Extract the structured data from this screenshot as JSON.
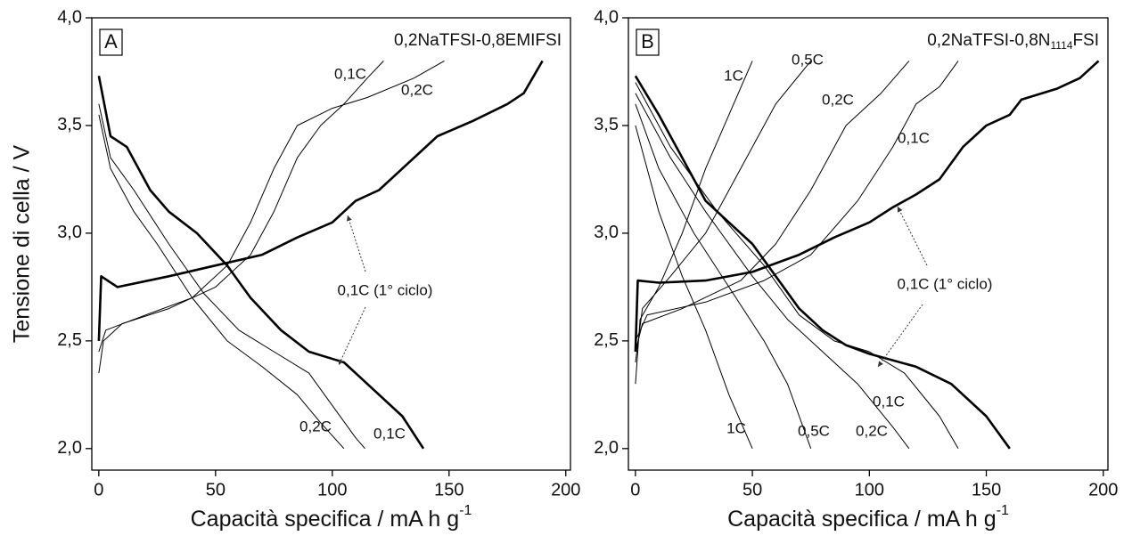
{
  "chart_data": [
    {
      "type": "line",
      "panel": "A",
      "title": "0,2NaTFSI-0,8EMIFSI",
      "x_label": "Capacità specifica / mA h g",
      "x_label_sup": "-1",
      "y_label": "Tensione di cella / V",
      "xlim": [
        -3,
        202
      ],
      "ylim": [
        1.9,
        4.0
      ],
      "xticks": [
        0,
        50,
        100,
        150,
        200
      ],
      "yticks": [
        {
          "value": 2,
          "label": "2,0"
        },
        {
          "value": 2.5,
          "label": "2,5"
        },
        {
          "value": 3,
          "label": "3,0"
        },
        {
          "value": 3.5,
          "label": "3,5"
        },
        {
          "value": 4,
          "label": "4,0"
        }
      ],
      "series": [
        {
          "color": "#000000",
          "linewidth": 2.6,
          "x": [
            0,
            1,
            8,
            30,
            50,
            70,
            85,
            100,
            110,
            120,
            130,
            145,
            160,
            175,
            182,
            190
          ],
          "values": [
            2.5,
            2.8,
            2.75,
            2.8,
            2.85,
            2.9,
            2.98,
            3.05,
            3.15,
            3.2,
            3.3,
            3.45,
            3.52,
            3.6,
            3.65,
            3.8
          ]
        },
        {
          "color": "#000000",
          "linewidth": 2.6,
          "x": [
            0,
            5,
            12,
            22,
            30,
            42,
            55,
            65,
            78,
            90,
            105,
            115,
            130,
            139
          ],
          "values": [
            3.73,
            3.45,
            3.4,
            3.2,
            3.1,
            3.0,
            2.85,
            2.7,
            2.55,
            2.45,
            2.4,
            2.3,
            2.15,
            2.0
          ]
        },
        {
          "color": "#000000",
          "linewidth": 1,
          "x": [
            0,
            2,
            10,
            30,
            50,
            65,
            75,
            85,
            95,
            105,
            115,
            122
          ],
          "values": [
            2.35,
            2.5,
            2.58,
            2.65,
            2.75,
            2.9,
            3.1,
            3.35,
            3.5,
            3.6,
            3.72,
            3.8
          ]
        },
        {
          "color": "#000000",
          "linewidth": 1,
          "x": [
            0,
            3,
            20,
            40,
            55,
            65,
            75,
            85,
            100,
            115,
            135,
            148
          ],
          "values": [
            2.45,
            2.55,
            2.62,
            2.7,
            2.85,
            3.05,
            3.3,
            3.5,
            3.58,
            3.63,
            3.72,
            3.8
          ]
        },
        {
          "color": "#000000",
          "linewidth": 1,
          "x": [
            0,
            5,
            15,
            30,
            45,
            60,
            75,
            90,
            100,
            110,
            114
          ],
          "values": [
            3.6,
            3.35,
            3.2,
            2.95,
            2.72,
            2.55,
            2.45,
            2.35,
            2.2,
            2.05,
            2.0
          ]
        },
        {
          "color": "#000000",
          "linewidth": 1,
          "x": [
            0,
            5,
            15,
            25,
            40,
            55,
            70,
            85,
            95,
            105
          ],
          "values": [
            3.55,
            3.3,
            3.1,
            2.95,
            2.7,
            2.5,
            2.38,
            2.25,
            2.12,
            2.0
          ]
        }
      ],
      "annotations": [
        "0,1C",
        "0,2C",
        "0,2C",
        "0,1C",
        "0,1C (1° ciclo)"
      ]
    },
    {
      "type": "line",
      "panel": "B",
      "title": "0,2NaTFSI-0,8N",
      "title_sub": "1114",
      "title_end": "FSI",
      "x_label": "Capacità specifica / mA h g",
      "x_label_sup": "-1",
      "xlim": [
        -3,
        202
      ],
      "ylim": [
        1.9,
        4.0
      ],
      "xticks": [
        0,
        50,
        100,
        150,
        200
      ],
      "yticks": [
        {
          "value": 2,
          "label": "2,0"
        },
        {
          "value": 2.5,
          "label": "2,5"
        },
        {
          "value": 3,
          "label": "3,0"
        },
        {
          "value": 3.5,
          "label": "3,5"
        },
        {
          "value": 4,
          "label": "4,0"
        }
      ],
      "series": [
        {
          "color": "#000000",
          "linewidth": 2.6,
          "x": [
            0,
            1,
            10,
            30,
            50,
            70,
            85,
            100,
            110,
            120,
            130,
            140,
            150,
            160,
            165,
            180,
            190,
            198
          ],
          "values": [
            2.45,
            2.78,
            2.77,
            2.78,
            2.82,
            2.9,
            2.98,
            3.05,
            3.12,
            3.18,
            3.25,
            3.4,
            3.5,
            3.55,
            3.62,
            3.67,
            3.72,
            3.8
          ]
        },
        {
          "color": "#000000",
          "linewidth": 2.6,
          "x": [
            0,
            10,
            20,
            30,
            40,
            50,
            60,
            70,
            80,
            90,
            100,
            120,
            135,
            150,
            160
          ],
          "values": [
            3.73,
            3.55,
            3.35,
            3.15,
            3.05,
            2.95,
            2.8,
            2.65,
            2.55,
            2.48,
            2.44,
            2.38,
            2.3,
            2.15,
            2.0
          ]
        },
        {
          "color": "#000000",
          "linewidth": 1,
          "x": [
            0,
            2,
            10,
            20,
            30,
            40,
            50
          ],
          "values": [
            2.3,
            2.6,
            2.75,
            3.0,
            3.3,
            3.55,
            3.8
          ]
        },
        {
          "color": "#000000",
          "linewidth": 1,
          "x": [
            0,
            3,
            15,
            30,
            45,
            60,
            75
          ],
          "values": [
            2.4,
            2.65,
            2.8,
            3.0,
            3.3,
            3.6,
            3.8
          ]
        },
        {
          "color": "#000000",
          "linewidth": 1,
          "x": [
            0,
            3,
            20,
            45,
            60,
            75,
            90,
            105,
            117
          ],
          "values": [
            2.45,
            2.58,
            2.65,
            2.78,
            2.95,
            3.2,
            3.5,
            3.65,
            3.8
          ]
        },
        {
          "color": "#000000",
          "linewidth": 1,
          "x": [
            0,
            5,
            30,
            55,
            75,
            95,
            110,
            120,
            130,
            138
          ],
          "values": [
            2.5,
            2.62,
            2.68,
            2.78,
            2.9,
            3.15,
            3.4,
            3.6,
            3.68,
            3.8
          ]
        },
        {
          "color": "#000000",
          "linewidth": 1,
          "x": [
            0,
            10,
            20,
            30,
            40,
            50
          ],
          "values": [
            3.5,
            3.1,
            2.8,
            2.55,
            2.25,
            2.0
          ]
        },
        {
          "color": "#000000",
          "linewidth": 1,
          "x": [
            0,
            10,
            25,
            40,
            55,
            65,
            75
          ],
          "values": [
            3.6,
            3.3,
            3.0,
            2.75,
            2.5,
            2.3,
            2.0
          ]
        },
        {
          "color": "#000000",
          "linewidth": 1,
          "x": [
            0,
            15,
            30,
            50,
            65,
            80,
            95,
            110,
            117
          ],
          "values": [
            3.65,
            3.35,
            3.1,
            2.8,
            2.6,
            2.45,
            2.3,
            2.1,
            2.0
          ]
        },
        {
          "color": "#000000",
          "linewidth": 1,
          "x": [
            0,
            15,
            35,
            55,
            70,
            85,
            100,
            115,
            130,
            138
          ],
          "values": [
            3.7,
            3.4,
            3.1,
            2.85,
            2.62,
            2.5,
            2.45,
            2.35,
            2.15,
            2.0
          ]
        }
      ],
      "annotations": [
        "1C",
        "0,5C",
        "0,2C",
        "0,1C",
        "1C",
        "0,5C",
        "0,2C",
        "0,1C",
        "0,1C (1° ciclo)"
      ]
    }
  ]
}
